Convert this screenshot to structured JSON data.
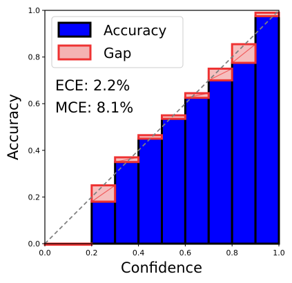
{
  "chart_data": {
    "type": "bar",
    "title": "",
    "xlabel": "Confidence",
    "ylabel": "Accuracy",
    "xlim": [
      0.0,
      1.0
    ],
    "ylim": [
      0.0,
      1.0
    ],
    "xticks": [
      "0.0",
      "0.2",
      "0.4",
      "0.6",
      "0.8",
      "1.0"
    ],
    "yticks": [
      "0.0",
      "0.2",
      "0.4",
      "0.6",
      "0.8",
      "1.0"
    ],
    "grid": false,
    "legend_position": "top-left",
    "bins": [
      {
        "left": 0.0,
        "right": 0.1,
        "accuracy": 0.0,
        "confidence": 0.0
      },
      {
        "left": 0.1,
        "right": 0.2,
        "accuracy": 0.0,
        "confidence": 0.0
      },
      {
        "left": 0.2,
        "right": 0.3,
        "accuracy": 0.18,
        "confidence": 0.25
      },
      {
        "left": 0.3,
        "right": 0.4,
        "accuracy": 0.35,
        "confidence": 0.37
      },
      {
        "left": 0.4,
        "right": 0.5,
        "accuracy": 0.45,
        "confidence": 0.465
      },
      {
        "left": 0.5,
        "right": 0.6,
        "accuracy": 0.535,
        "confidence": 0.55
      },
      {
        "left": 0.6,
        "right": 0.7,
        "accuracy": 0.625,
        "confidence": 0.645
      },
      {
        "left": 0.7,
        "right": 0.8,
        "accuracy": 0.7,
        "confidence": 0.75
      },
      {
        "left": 0.8,
        "right": 0.9,
        "accuracy": 0.775,
        "confidence": 0.855
      },
      {
        "left": 0.9,
        "right": 1.0,
        "accuracy": 0.975,
        "confidence": 0.99
      }
    ],
    "series": [
      {
        "name": "Accuracy",
        "color": "#0000ff",
        "edge": "#000000"
      },
      {
        "name": "Gap",
        "color": "#f4b3b3",
        "edge": "#ee3333"
      }
    ],
    "reference_line": {
      "from": [
        0.0,
        0.0
      ],
      "to": [
        1.0,
        1.0
      ],
      "color": "#808080",
      "style": "dashed"
    },
    "annotations": [
      "ECE: 2.2%",
      "MCE: 8.1%"
    ]
  }
}
